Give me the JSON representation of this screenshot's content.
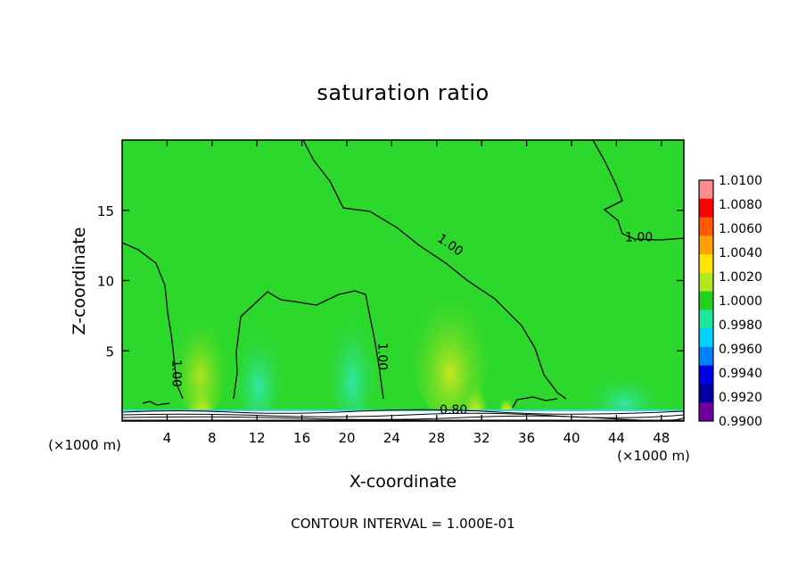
{
  "chart_data": {
    "type": "heatmap",
    "title": "saturation ratio",
    "xlabel": "X-coordinate",
    "ylabel": "Z-coordinate",
    "x_unit": "(×1000 m)",
    "y_unit": "(×1000 m)",
    "xlim": [
      0,
      50
    ],
    "ylim": [
      0,
      20
    ],
    "x_ticks": [
      4,
      8,
      12,
      16,
      20,
      24,
      28,
      32,
      36,
      40,
      44,
      48
    ],
    "y_ticks": [
      5,
      10,
      15
    ],
    "colorbar": {
      "levels": [
        "1.0100",
        "1.0080",
        "1.0060",
        "1.0040",
        "1.0020",
        "1.0000",
        "0.9980",
        "0.9960",
        "0.9940",
        "0.9920",
        "0.9900"
      ],
      "colors": [
        "#ff8c8c",
        "#ff0000",
        "#ff5a00",
        "#ffa000",
        "#ffe600",
        "#b4e61e",
        "#1ed21e",
        "#1ee6a0",
        "#00d2ff",
        "#0080ff",
        "#0000e6",
        "#0000a0",
        "#6e00a0"
      ]
    },
    "background_value": "1.0000",
    "background_color": "#2bd82b",
    "contour_labels": [
      {
        "text": "1.00",
        "x": 29.0,
        "z": 12.3
      },
      {
        "text": "1.00",
        "x": 46.0,
        "z": 12.8
      },
      {
        "text": "1.00",
        "x": 4.5,
        "z": 3.4
      },
      {
        "text": "1.00",
        "x": 22.8,
        "z": 4.6
      },
      {
        "text": "0.80",
        "x": 29.5,
        "z": 0.5
      }
    ],
    "footer": "CONTOUR INTERVAL = 1.000E-01"
  }
}
